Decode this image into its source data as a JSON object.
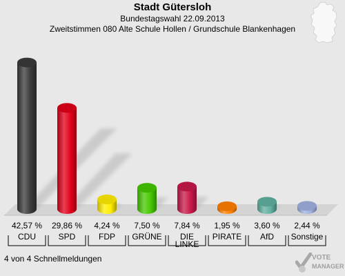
{
  "header": {
    "title": "Stadt Gütersloh",
    "subtitle": "Bundestagswahl 22.09.2013",
    "district": "Zweitstimmen 080 Alte Schule Hollen / Grundschule Blankenhagen"
  },
  "footer": {
    "note": "4 von 4 Schnellmeldungen",
    "logo_line1": "VOTE",
    "logo_line2": "MANAGER"
  },
  "icons": {
    "map": "germany-map-icon",
    "logo": "votemanager-check-icon"
  },
  "chart_data": {
    "type": "bar",
    "title": "Stadt Gütersloh",
    "xlabel": "",
    "ylabel": "",
    "ylim": [
      0,
      45
    ],
    "grid": false,
    "legend": "none",
    "categories": [
      "CDU",
      "SPD",
      "FDP",
      "GRÜNE",
      "DIE LINKE",
      "PIRATE",
      "AfD",
      "Sonstige"
    ],
    "category_lines": [
      [
        "CDU"
      ],
      [
        "SPD"
      ],
      [
        "FDP"
      ],
      [
        "GRÜNE"
      ],
      [
        "DIE",
        "LINKE"
      ],
      [
        "PIRATE"
      ],
      [
        "AfD"
      ],
      [
        "Sonstige"
      ]
    ],
    "values": [
      42.57,
      29.86,
      4.24,
      7.5,
      7.84,
      1.95,
      3.6,
      2.44
    ],
    "value_labels": [
      "42,57 %",
      "29,86 %",
      "4,24 %",
      "7,50 %",
      "7,84 %",
      "1,95 %",
      "3,60 %",
      "2,44 %"
    ],
    "colors": [
      "#3a3a3a",
      "#e2001a",
      "#ffed00",
      "#46c800",
      "#c8184a",
      "#ff8000",
      "#60b0a0",
      "#a0b0e0"
    ]
  }
}
